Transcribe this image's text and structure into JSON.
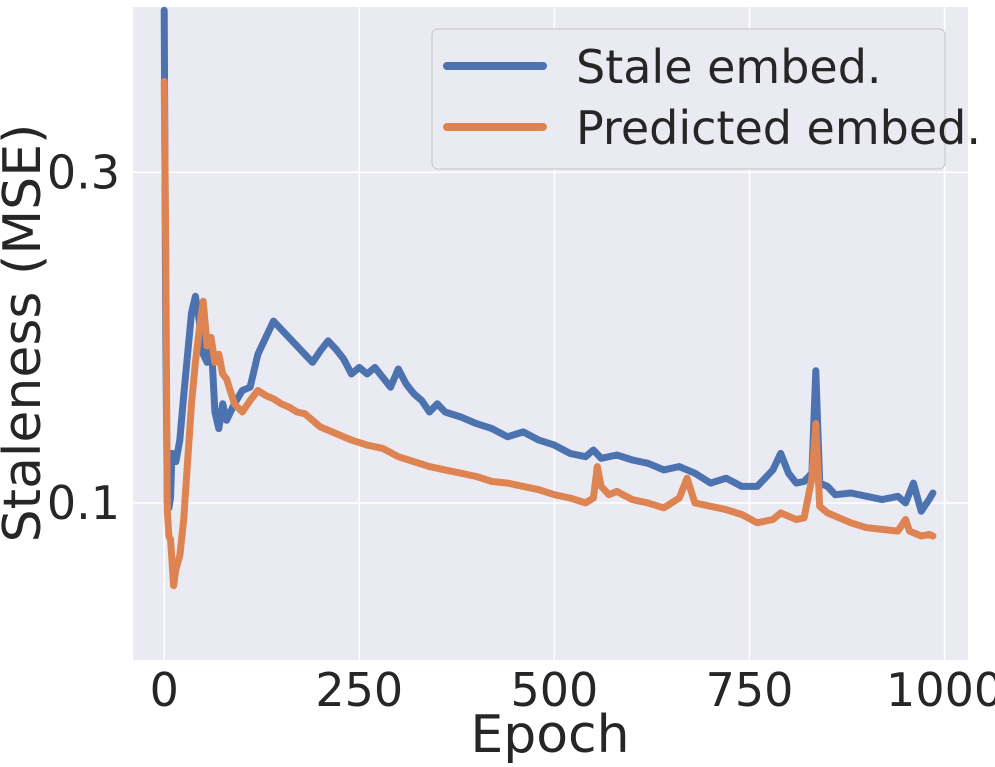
{
  "chart_data": {
    "type": "line",
    "xlabel": "Epoch",
    "ylabel": "Staleness (MSE)",
    "xlim": [
      -40,
      1030
    ],
    "ylim": [
      0.005,
      0.4
    ],
    "xticks": [
      0,
      250,
      500,
      750,
      1000
    ],
    "xtick_labels": [
      "0",
      "250",
      "500",
      "750",
      "1000"
    ],
    "yticks": [
      0.1,
      0.3
    ],
    "ytick_labels": [
      "0.1",
      "0.3"
    ],
    "grid": true,
    "legend": "top-right",
    "series": [
      {
        "name": "Stale embed.",
        "color": "#4c72b0",
        "x": [
          0,
          2,
          4,
          6,
          8,
          10,
          15,
          20,
          25,
          30,
          35,
          40,
          45,
          50,
          55,
          60,
          65,
          70,
          75,
          80,
          90,
          100,
          110,
          120,
          130,
          140,
          150,
          160,
          170,
          180,
          190,
          200,
          210,
          220,
          230,
          240,
          250,
          260,
          270,
          280,
          290,
          300,
          310,
          320,
          330,
          340,
          350,
          360,
          380,
          400,
          420,
          440,
          460,
          480,
          500,
          520,
          540,
          550,
          560,
          580,
          600,
          620,
          640,
          660,
          680,
          700,
          720,
          740,
          760,
          780,
          790,
          800,
          810,
          820,
          830,
          835,
          840,
          850,
          860,
          880,
          900,
          920,
          940,
          950,
          960,
          970,
          980,
          985
        ],
        "y": [
          0.398,
          0.2,
          0.1,
          0.097,
          0.103,
          0.13,
          0.125,
          0.138,
          0.165,
          0.19,
          0.215,
          0.225,
          0.21,
          0.19,
          0.185,
          0.2,
          0.155,
          0.145,
          0.16,
          0.15,
          0.16,
          0.168,
          0.17,
          0.19,
          0.2,
          0.21,
          0.205,
          0.2,
          0.195,
          0.19,
          0.185,
          0.192,
          0.198,
          0.193,
          0.187,
          0.178,
          0.182,
          0.178,
          0.182,
          0.176,
          0.17,
          0.181,
          0.172,
          0.166,
          0.162,
          0.155,
          0.16,
          0.155,
          0.152,
          0.148,
          0.145,
          0.14,
          0.143,
          0.138,
          0.135,
          0.13,
          0.128,
          0.132,
          0.127,
          0.129,
          0.126,
          0.124,
          0.12,
          0.122,
          0.118,
          0.112,
          0.115,
          0.11,
          0.11,
          0.12,
          0.13,
          0.118,
          0.112,
          0.113,
          0.118,
          0.18,
          0.112,
          0.11,
          0.105,
          0.106,
          0.104,
          0.102,
          0.104,
          0.1,
          0.112,
          0.095,
          0.102,
          0.106
        ]
      },
      {
        "name": "Predicted embed.",
        "color": "#dd8452",
        "x": [
          0,
          2,
          4,
          6,
          8,
          10,
          12,
          15,
          20,
          25,
          30,
          35,
          40,
          45,
          50,
          55,
          60,
          65,
          70,
          75,
          80,
          90,
          100,
          110,
          120,
          130,
          140,
          150,
          160,
          170,
          180,
          190,
          200,
          220,
          240,
          260,
          280,
          300,
          320,
          340,
          360,
          380,
          400,
          420,
          440,
          460,
          480,
          500,
          520,
          540,
          550,
          555,
          560,
          570,
          580,
          600,
          620,
          640,
          660,
          670,
          680,
          700,
          720,
          740,
          760,
          780,
          790,
          800,
          810,
          820,
          830,
          835,
          840,
          850,
          860,
          880,
          900,
          920,
          940,
          950,
          955,
          960,
          970,
          980,
          985
        ],
        "y": [
          0.355,
          0.25,
          0.095,
          0.08,
          0.078,
          0.065,
          0.05,
          0.06,
          0.068,
          0.09,
          0.125,
          0.16,
          0.185,
          0.205,
          0.222,
          0.195,
          0.2,
          0.185,
          0.19,
          0.178,
          0.175,
          0.16,
          0.155,
          0.162,
          0.168,
          0.165,
          0.163,
          0.16,
          0.158,
          0.155,
          0.154,
          0.15,
          0.146,
          0.142,
          0.138,
          0.135,
          0.133,
          0.128,
          0.125,
          0.122,
          0.12,
          0.118,
          0.116,
          0.113,
          0.112,
          0.11,
          0.108,
          0.105,
          0.103,
          0.1,
          0.103,
          0.122,
          0.11,
          0.105,
          0.107,
          0.102,
          0.1,
          0.097,
          0.103,
          0.115,
          0.1,
          0.098,
          0.096,
          0.093,
          0.088,
          0.09,
          0.094,
          0.092,
          0.09,
          0.091,
          0.115,
          0.148,
          0.098,
          0.094,
          0.092,
          0.088,
          0.085,
          0.084,
          0.083,
          0.09,
          0.083,
          0.082,
          0.08,
          0.081,
          0.08
        ]
      }
    ]
  }
}
